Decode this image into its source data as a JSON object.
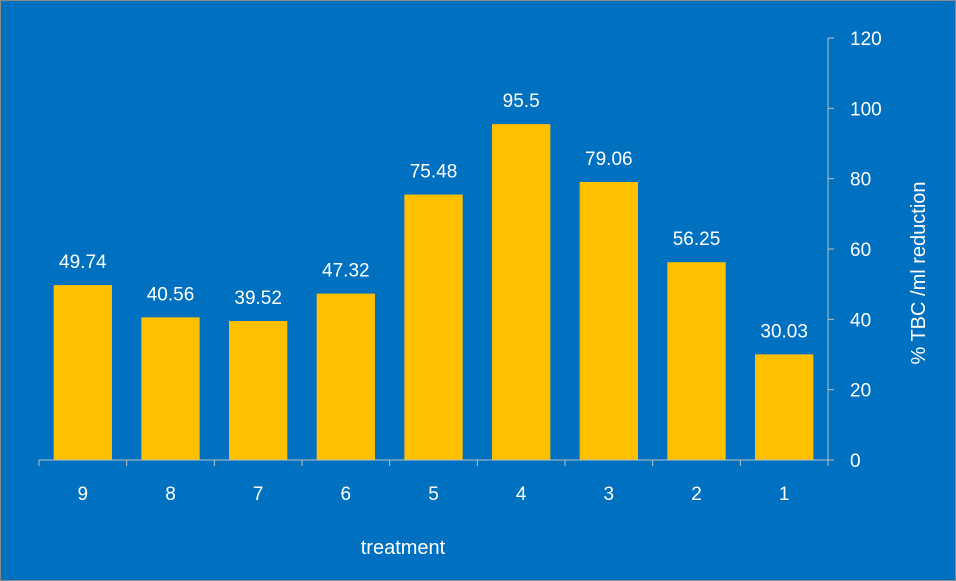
{
  "colors": {
    "background": "#0070C0",
    "bar": "#FFC000",
    "text": "#FFFFFF",
    "axis": "#BFBFBF"
  },
  "chart_data": {
    "type": "bar",
    "title": "",
    "xlabel": "treatment",
    "ylabel": "% TBC /ml reduction",
    "y_axis_side": "right",
    "categories": [
      "9",
      "8",
      "7",
      "6",
      "5",
      "4",
      "3",
      "2",
      "1"
    ],
    "values": [
      49.74,
      40.56,
      39.52,
      47.32,
      75.48,
      95.5,
      79.06,
      56.25,
      30.03
    ],
    "data_labels": [
      "49.74",
      "40.56",
      "39.52",
      "47.32",
      "75.48",
      "95.5",
      "79.06",
      "56.25",
      "30.03"
    ],
    "ylim": [
      0,
      120
    ],
    "yticks": [
      0,
      20,
      40,
      60,
      80,
      100,
      120
    ],
    "grid": false,
    "legend": "none"
  }
}
